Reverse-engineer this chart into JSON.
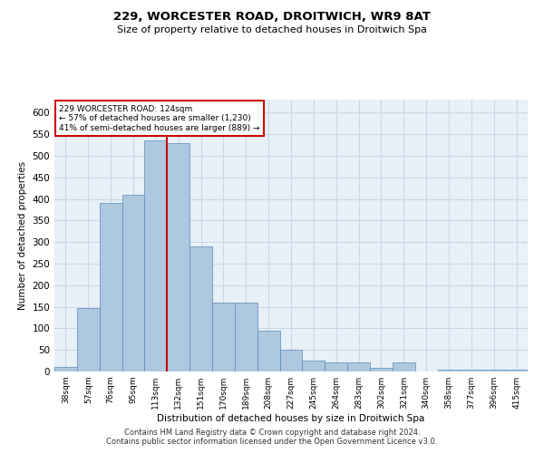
{
  "title1": "229, WORCESTER ROAD, DROITWICH, WR9 8AT",
  "title2": "Size of property relative to detached houses in Droitwich Spa",
  "xlabel": "Distribution of detached houses by size in Droitwich Spa",
  "ylabel": "Number of detached properties",
  "footer1": "Contains HM Land Registry data © Crown copyright and database right 2024.",
  "footer2": "Contains public sector information licensed under the Open Government Licence v3.0.",
  "categories": [
    "38sqm",
    "57sqm",
    "76sqm",
    "95sqm",
    "113sqm",
    "132sqm",
    "151sqm",
    "170sqm",
    "189sqm",
    "208sqm",
    "227sqm",
    "245sqm",
    "264sqm",
    "283sqm",
    "302sqm",
    "321sqm",
    "340sqm",
    "358sqm",
    "377sqm",
    "396sqm",
    "415sqm"
  ],
  "values": [
    10,
    147,
    390,
    410,
    535,
    530,
    290,
    160,
    160,
    95,
    50,
    25,
    20,
    20,
    8,
    20,
    0,
    5,
    5,
    5,
    5
  ],
  "bar_color": "#aec8e0",
  "bar_edge_color": "#5a8ab5",
  "property_line_x": 4.5,
  "annotation_text1": "229 WORCESTER ROAD: 124sqm",
  "annotation_text2": "← 57% of detached houses are smaller (1,230)",
  "annotation_text3": "41% of semi-detached houses are larger (889) →",
  "annotation_box_color": "#ffffff",
  "annotation_box_edge": "#cc0000",
  "property_line_color": "#cc0000",
  "grid_color": "#c8d8e8",
  "background_color": "#e8f0f8",
  "ylim": [
    0,
    630
  ],
  "yticks": [
    0,
    50,
    100,
    150,
    200,
    250,
    300,
    350,
    400,
    450,
    500,
    550,
    600
  ]
}
